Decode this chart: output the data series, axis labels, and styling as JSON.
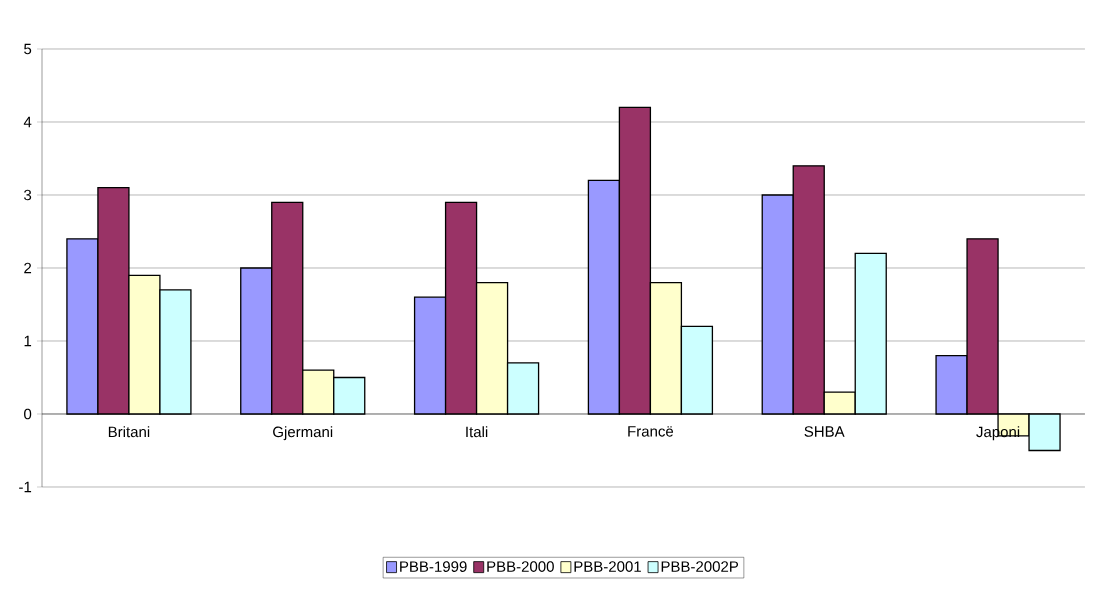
{
  "chart_data": {
    "type": "bar",
    "categories": [
      "Britani",
      "Gjermani",
      "Itali",
      "Francë",
      "SHBA",
      "Japoni"
    ],
    "series": [
      {
        "name": "PBB-1999",
        "color": "#9999ff",
        "values": [
          2.4,
          2.0,
          1.6,
          3.2,
          3.0,
          0.8
        ]
      },
      {
        "name": "PBB-2000",
        "color": "#993366",
        "values": [
          3.1,
          2.9,
          2.9,
          4.2,
          3.4,
          2.4
        ]
      },
      {
        "name": "PBB-2001",
        "color": "#ffffcc",
        "values": [
          1.9,
          0.6,
          1.8,
          1.8,
          0.3,
          -0.3
        ]
      },
      {
        "name": "PBB-2002P",
        "color": "#ccffff",
        "values": [
          1.7,
          0.5,
          0.7,
          1.2,
          2.2,
          -0.5
        ]
      }
    ],
    "ylim": [
      -1,
      5
    ],
    "yticks": [
      -1,
      0,
      1,
      2,
      3,
      4,
      5
    ],
    "grid": "y",
    "legend": "bottom"
  }
}
